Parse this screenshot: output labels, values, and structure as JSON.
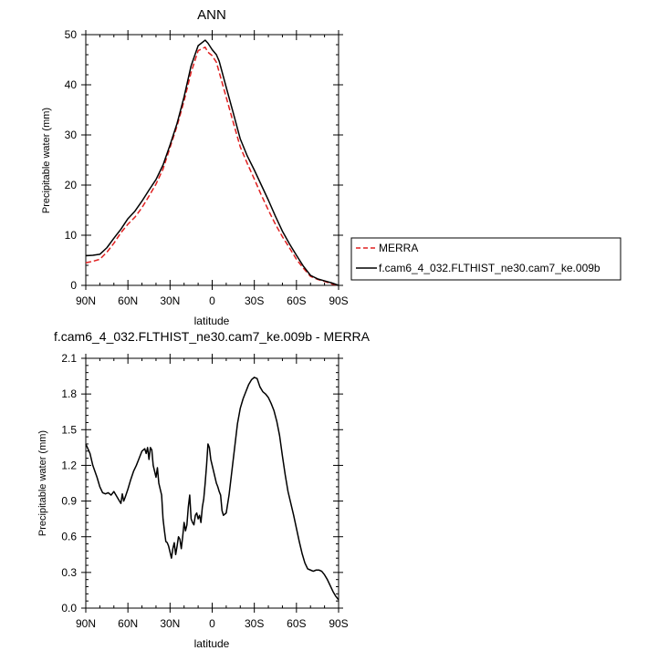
{
  "chart_data": [
    {
      "type": "line",
      "title": "ANN",
      "xlabel": "latitude",
      "ylabel": "Precipitable water (mm)",
      "xlim": [
        90,
        -90
      ],
      "ylim": [
        0,
        50
      ],
      "x_ticks": [
        90,
        60,
        30,
        0,
        -30,
        -60,
        -90
      ],
      "x_tick_labels": [
        "90N",
        "60N",
        "30N",
        "0",
        "30S",
        "60S",
        "90S"
      ],
      "y_ticks": [
        0,
        10,
        20,
        30,
        40,
        50
      ],
      "y_tick_labels": [
        "0",
        "10",
        "20",
        "30",
        "40",
        "50"
      ],
      "grid": false,
      "legend_position": "right",
      "series": [
        {
          "name": "MERRA",
          "color": "#e02020",
          "dash": true,
          "x": [
            90,
            85,
            80,
            75,
            70,
            65,
            60,
            55,
            50,
            45,
            40,
            35,
            30,
            25,
            20,
            15,
            10,
            5,
            3,
            0,
            -3,
            -5,
            -10,
            -15,
            -20,
            -25,
            -30,
            -35,
            -40,
            -45,
            -50,
            -55,
            -60,
            -65,
            -70,
            -75,
            -80,
            -85,
            -90
          ],
          "y": [
            4.5,
            4.8,
            5.2,
            6.6,
            8.4,
            10.5,
            12.2,
            13.6,
            15.5,
            17.8,
            20.2,
            23.2,
            27.5,
            31.8,
            36.8,
            42.5,
            46.8,
            47.5,
            46.5,
            45.8,
            44.5,
            42.5,
            37.5,
            32.5,
            27.6,
            24.3,
            21.2,
            18.0,
            15.0,
            12.2,
            9.7,
            7.5,
            5.2,
            3.4,
            1.8,
            1.2,
            0.8,
            0.3,
            0.0
          ]
        },
        {
          "name": "f.cam6_4_032.FLTHIST_ne30.cam7_ke.009b",
          "color": "#000000",
          "dash": false,
          "x": [
            90,
            85,
            80,
            75,
            70,
            65,
            60,
            55,
            50,
            45,
            40,
            35,
            30,
            25,
            20,
            15,
            10,
            5,
            3,
            0,
            -3,
            -5,
            -10,
            -15,
            -20,
            -25,
            -30,
            -35,
            -40,
            -45,
            -50,
            -55,
            -60,
            -65,
            -70,
            -75,
            -80,
            -85,
            -90
          ],
          "y": [
            5.9,
            6.0,
            6.2,
            7.5,
            9.4,
            11.2,
            13.3,
            14.8,
            16.8,
            19.0,
            21.1,
            24.0,
            28.0,
            32.3,
            37.6,
            43.8,
            47.8,
            48.9,
            48.3,
            47.0,
            46.0,
            44.7,
            39.5,
            34.4,
            29.2,
            25.8,
            23.0,
            20.0,
            17.0,
            13.8,
            10.8,
            8.3,
            6.0,
            3.8,
            2.0,
            1.3,
            0.9,
            0.5,
            0.0
          ]
        }
      ]
    },
    {
      "type": "line",
      "title": "f.cam6_4_032.FLTHIST_ne30.cam7_ke.009b - MERRA",
      "xlabel": "latitude",
      "ylabel": "Precipitable water (mm)",
      "xlim": [
        90,
        -90
      ],
      "ylim": [
        0,
        2.1
      ],
      "x_ticks": [
        90,
        60,
        30,
        0,
        -30,
        -60,
        -90
      ],
      "x_tick_labels": [
        "90N",
        "60N",
        "30N",
        "0",
        "30S",
        "60S",
        "90S"
      ],
      "y_ticks": [
        0,
        0.3,
        0.6,
        0.9,
        1.2,
        1.5,
        1.8,
        2.1
      ],
      "y_tick_labels": [
        "0.0",
        "0.3",
        "0.6",
        "0.9",
        "1.2",
        "1.5",
        "1.8",
        "2.1"
      ],
      "grid": false,
      "series": [
        {
          "color": "#000000",
          "x": [
            90,
            87,
            85,
            82,
            80,
            78,
            76,
            74,
            72,
            70,
            68,
            66,
            65,
            64,
            63,
            62,
            60,
            58,
            56,
            54,
            52,
            50,
            48,
            47,
            46,
            45,
            44,
            43,
            42,
            41,
            40,
            39,
            38,
            36,
            35,
            34,
            33,
            32,
            31,
            30,
            29,
            28,
            27,
            26,
            25,
            24,
            23,
            22,
            21,
            20,
            19,
            18,
            17,
            16,
            15,
            14,
            13,
            12,
            11,
            10,
            9,
            8,
            7,
            6,
            5,
            4,
            3,
            2,
            1,
            0,
            -1,
            -2,
            -3,
            -4,
            -5,
            -6,
            -7,
            -8,
            -10,
            -12,
            -14,
            -16,
            -18,
            -20,
            -22,
            -24,
            -26,
            -28,
            -30,
            -32,
            -34,
            -36,
            -38,
            -40,
            -42,
            -44,
            -46,
            -48,
            -50,
            -52,
            -54,
            -56,
            -58,
            -60,
            -62,
            -64,
            -66,
            -68,
            -70,
            -72,
            -74,
            -76,
            -78,
            -80,
            -82,
            -84,
            -86,
            -88,
            -90
          ],
          "y": [
            1.38,
            1.3,
            1.2,
            1.1,
            1.02,
            0.97,
            0.96,
            0.97,
            0.95,
            0.98,
            0.94,
            0.9,
            0.88,
            0.96,
            0.9,
            0.93,
            1.0,
            1.08,
            1.15,
            1.2,
            1.26,
            1.32,
            1.34,
            1.3,
            1.35,
            1.25,
            1.35,
            1.33,
            1.2,
            1.15,
            1.1,
            1.18,
            1.05,
            0.95,
            0.75,
            0.65,
            0.56,
            0.55,
            0.52,
            0.47,
            0.42,
            0.5,
            0.55,
            0.45,
            0.52,
            0.6,
            0.58,
            0.5,
            0.6,
            0.72,
            0.65,
            0.7,
            0.85,
            0.95,
            0.75,
            0.72,
            0.7,
            0.78,
            0.8,
            0.75,
            0.78,
            0.72,
            0.85,
            0.92,
            1.05,
            1.2,
            1.38,
            1.35,
            1.25,
            1.2,
            1.15,
            1.1,
            1.05,
            1.02,
            0.98,
            0.95,
            0.82,
            0.78,
            0.8,
            0.95,
            1.15,
            1.35,
            1.55,
            1.68,
            1.76,
            1.82,
            1.88,
            1.92,
            1.94,
            1.93,
            1.86,
            1.82,
            1.8,
            1.77,
            1.72,
            1.66,
            1.57,
            1.45,
            1.28,
            1.12,
            0.98,
            0.88,
            0.78,
            0.67,
            0.56,
            0.46,
            0.38,
            0.33,
            0.32,
            0.31,
            0.32,
            0.32,
            0.31,
            0.28,
            0.24,
            0.19,
            0.14,
            0.1,
            0.07
          ]
        }
      ]
    }
  ]
}
